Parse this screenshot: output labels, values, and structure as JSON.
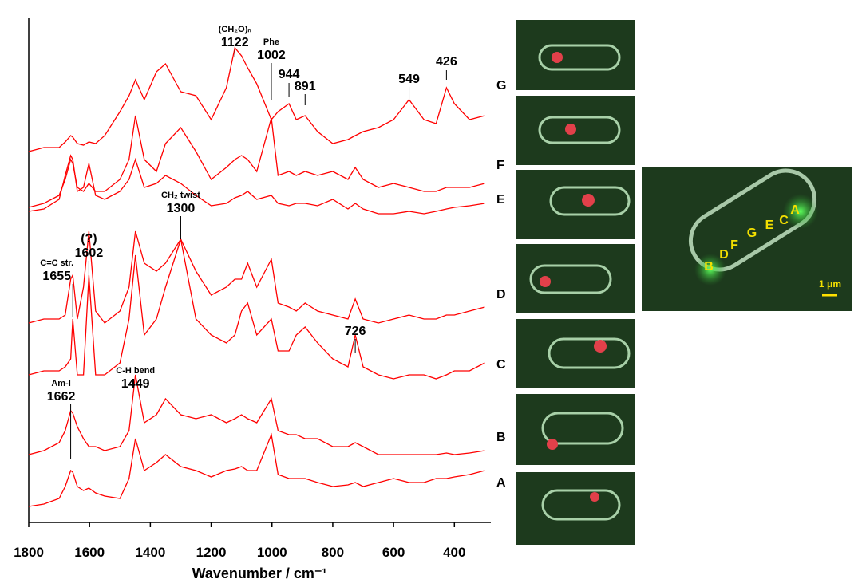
{
  "chart_data": {
    "type": "line",
    "xlabel": "Wavenumber / cm⁻¹",
    "xlim": [
      1800,
      280
    ],
    "ylim": [
      0,
      633
    ],
    "xticks": [
      1800,
      1600,
      1400,
      1200,
      1000,
      800,
      600,
      400
    ],
    "x": [
      1800,
      1750,
      1700,
      1680,
      1662,
      1655,
      1640,
      1620,
      1602,
      1580,
      1550,
      1500,
      1470,
      1449,
      1420,
      1380,
      1350,
      1300,
      1250,
      1200,
      1150,
      1122,
      1100,
      1080,
      1050,
      1002,
      980,
      944,
      920,
      891,
      850,
      800,
      750,
      726,
      700,
      650,
      600,
      549,
      500,
      460,
      426,
      400,
      350,
      300
    ],
    "series": [
      {
        "name": "G",
        "color": "#ff0000",
        "values": [
          465,
          470,
          470,
          477,
          485,
          483,
          475,
          473,
          477,
          475,
          485,
          515,
          535,
          555,
          530,
          565,
          575,
          540,
          535,
          505,
          545,
          595,
          585,
          570,
          550,
          505,
          515,
          525,
          505,
          510,
          490,
          475,
          480,
          485,
          490,
          495,
          505,
          530,
          505,
          500,
          545,
          525,
          505,
          510
        ]
      },
      {
        "name": "F",
        "color": "#ff0000",
        "values": [
          395,
          400,
          410,
          430,
          455,
          450,
          420,
          415,
          425,
          415,
          415,
          430,
          455,
          510,
          455,
          440,
          475,
          495,
          465,
          430,
          445,
          455,
          460,
          455,
          440,
          507,
          435,
          440,
          435,
          440,
          435,
          440,
          430,
          445,
          430,
          420,
          425,
          420,
          415,
          415,
          420,
          420,
          420,
          425
        ]
      },
      {
        "name": "E",
        "color": "#ff0000",
        "values": [
          390,
          393,
          405,
          435,
          460,
          455,
          415,
          420,
          450,
          410,
          405,
          415,
          430,
          455,
          420,
          425,
          435,
          425,
          410,
          397,
          400,
          407,
          410,
          415,
          405,
          410,
          400,
          397,
          400,
          400,
          397,
          405,
          393,
          400,
          393,
          387,
          387,
          390,
          387,
          390,
          393,
          395,
          397,
          400
        ]
      },
      {
        "name": "D",
        "color": "#ff0000",
        "values": [
          250,
          255,
          255,
          260,
          305,
          310,
          255,
          295,
          365,
          265,
          250,
          265,
          295,
          365,
          325,
          315,
          325,
          355,
          315,
          285,
          295,
          305,
          305,
          325,
          295,
          330,
          275,
          270,
          265,
          275,
          265,
          260,
          255,
          280,
          255,
          250,
          255,
          260,
          255,
          255,
          260,
          260,
          265,
          270
        ]
      },
      {
        "name": "C",
        "color": "#ff0000",
        "values": [
          185,
          190,
          190,
          195,
          205,
          255,
          185,
          185,
          310,
          185,
          185,
          200,
          255,
          335,
          235,
          255,
          295,
          355,
          255,
          235,
          225,
          235,
          265,
          275,
          235,
          255,
          215,
          215,
          235,
          245,
          225,
          205,
          195,
          235,
          195,
          185,
          180,
          185,
          185,
          180,
          185,
          190,
          190,
          200
        ]
      },
      {
        "name": "B",
        "color": "#ff0000",
        "values": [
          85,
          90,
          100,
          115,
          140,
          137,
          120,
          105,
          95,
          95,
          90,
          95,
          115,
          185,
          125,
          135,
          155,
          135,
          130,
          135,
          125,
          130,
          135,
          130,
          125,
          155,
          115,
          110,
          110,
          105,
          105,
          95,
          95,
          100,
          95,
          85,
          85,
          85,
          85,
          85,
          87,
          85,
          87,
          90
        ]
      },
      {
        "name": "A",
        "color": "#ff0000",
        "values": [
          20,
          23,
          30,
          45,
          65,
          63,
          45,
          40,
          43,
          37,
          33,
          30,
          55,
          105,
          65,
          75,
          85,
          70,
          65,
          57,
          65,
          67,
          70,
          65,
          65,
          110,
          60,
          55,
          55,
          55,
          50,
          45,
          47,
          50,
          45,
          50,
          55,
          50,
          50,
          55,
          55,
          57,
          60,
          65
        ]
      }
    ],
    "annotations": [
      {
        "x": 1122,
        "note": "(CH₂O)ₙ"
      },
      {
        "x": 1002,
        "note": "Phe"
      },
      {
        "x": 944
      },
      {
        "x": 891
      },
      {
        "x": 549
      },
      {
        "x": 426
      },
      {
        "x": 1300,
        "note": "CH₂ twist"
      },
      {
        "x": 1602,
        "note": "(?)"
      },
      {
        "x": 1655,
        "note": "C=C str."
      },
      {
        "x": 726
      },
      {
        "x": 1449,
        "note": "C-H bend"
      },
      {
        "x": 1662,
        "note": "Am-I"
      }
    ]
  },
  "image_labels": [
    "B",
    "D",
    "F",
    "G",
    "E",
    "C",
    "A"
  ],
  "scale_label": "1 μm"
}
